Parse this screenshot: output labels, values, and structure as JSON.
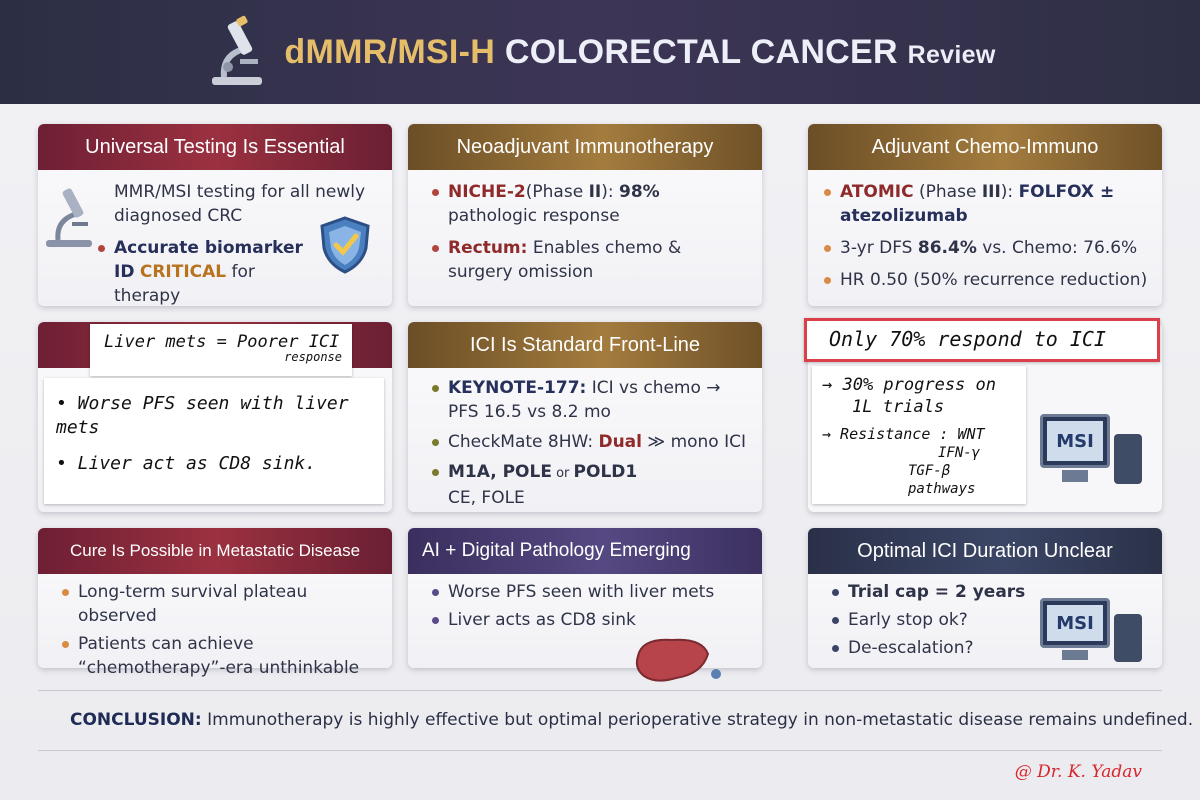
{
  "header": {
    "title_part1": "dMMR/MSI-H",
    "title_part2": "COLORECTAL CANCER",
    "title_part3": "Review",
    "icon": "microscope-icon"
  },
  "cards": {
    "universal": {
      "title": "Universal Testing Is Essential",
      "p1": "MMR/MSI testing for all newly diagnosed CRC",
      "p2_bold": "Accurate biomarker ID",
      "p2_gold": "CRITICAL",
      "p2_rest": "for therapy",
      "icon": "shield-check-icon"
    },
    "neoadjuvant": {
      "title": "Neoadjuvant Immunotherapy",
      "p1_name": "NICHE-2",
      "p1_phase_a": "(Phase ",
      "p1_phase_b": "II",
      "p1_phase_c": "): ",
      "p1_pct": "98%",
      "p1_rest": " pathologic response",
      "p2_name": "Rectum:",
      "p2_rest": " Enables chemo & surgery omission"
    },
    "adjuvant": {
      "title": "Adjuvant Chemo-Immuno",
      "p1_name": "ATOMIC",
      "p1_phase_a": " (Phase ",
      "p1_phase_b": "III",
      "p1_phase_c": "): ",
      "p1_drug": "FOLFOX ± atezolizumab",
      "p2_a": "3-yr DFS ",
      "p2_b": "86.4%",
      "p2_c": " vs. Chemo: 76.6%",
      "p3": "HR 0.50 (50% recurrence reduction)"
    },
    "liver_note": {
      "header_line1": "Liver mets = Poorer ICI",
      "header_line2": "response",
      "n1": "• Worse PFS seen with liver mets",
      "n2": "• Liver act as CD8 sink."
    },
    "ici_standard": {
      "title": "ICI Is Standard Front-Line",
      "p1_name": "KEYNOTE-177:",
      "p1_rest": " ICI vs chemo →",
      "p1_line2": "PFS 16.5 vs 8.2 mo",
      "p2_a": "CheckMate 8HW: ",
      "p2_b": "Dual",
      "p2_c": " ≫ mono ICI",
      "p3_a": "M1A, POLE",
      "p3_b": " or ",
      "p3_c": "POLD1",
      "p3_line2": "CE, FOLE"
    },
    "respond_note": {
      "header": "Only 70% respond to ICI",
      "n1": "→ 30% progress on",
      "n2": "1L trials",
      "n3": "→ Resistance : WNT",
      "n4": "IFN-γ",
      "n5": "TGF-β pathways",
      "badge": "MSI"
    },
    "cure": {
      "title": "Cure Is Possible in Metastatic Disease",
      "p1": "Long-term survival plateau observed",
      "p2": "Patients can achieve “chemotherapy”-era unthinkable"
    },
    "ai": {
      "title": "AI + Digital Pathology Emerging",
      "p1": "Worse PFS seen with liver mets",
      "p2": "Liver acts as CD8 sink",
      "icon": "liver-icon"
    },
    "duration": {
      "title": "Optimal ICI Duration Unclear",
      "p1": "Trial cap = 2 years",
      "p2": "Early stop ok?",
      "p3": "De-escalation?",
      "badge": "MSI"
    }
  },
  "conclusion": {
    "label": "CONCLUSION:",
    "text": " Immunotherapy is highly effective but optimal perioperative strategy in non-metastatic disease remains undefined."
  },
  "signature": "@ Dr. K. Yadav",
  "colors": {
    "header_bg": "#2c2f44",
    "title_gold": "#e6be6a",
    "red_head": "#9b3140",
    "gold_head": "#a37c3e",
    "navy_head": "#3b4666",
    "purple_head": "#564882",
    "signature_red": "#d8262c"
  }
}
